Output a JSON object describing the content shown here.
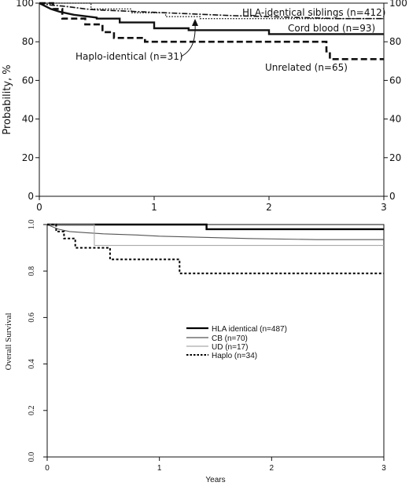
{
  "chart_data": [
    {
      "type": "line",
      "title": "",
      "xlabel": "",
      "ylabel": "Probability, %",
      "xlim": [
        0,
        3
      ],
      "ylim": [
        0,
        100
      ],
      "x_ticks": [
        "0",
        "1",
        "2",
        "3"
      ],
      "y_ticks": [
        "0",
        "20",
        "40",
        "60",
        "80",
        "100"
      ],
      "y_ticks_right": [
        "0",
        "20",
        "40",
        "60",
        "80",
        "100"
      ],
      "grid": false,
      "series": [
        {
          "name": "HLA-identical siblings (n=412)",
          "style": "dash-dot",
          "color": "#111111",
          "points": [
            [
              0,
              100
            ],
            [
              0.05,
              99.5
            ],
            [
              0.1,
              99
            ],
            [
              0.2,
              98.5
            ],
            [
              0.3,
              97.8
            ],
            [
              0.4,
              97
            ],
            [
              0.5,
              96.5
            ],
            [
              0.7,
              96
            ],
            [
              0.9,
              95.5
            ],
            [
              1.1,
              95
            ],
            [
              1.3,
              94.5
            ],
            [
              1.5,
              94
            ],
            [
              1.7,
              93.5
            ],
            [
              2.0,
              93
            ],
            [
              2.3,
              92.5
            ],
            [
              2.6,
              92
            ],
            [
              3.0,
              92
            ]
          ]
        },
        {
          "name": "Cord blood (n=93)",
          "style": "dotted",
          "color": "#111111",
          "points": [
            [
              0,
              100
            ],
            [
              0.45,
              100
            ],
            [
              0.45,
              97
            ],
            [
              0.8,
              97
            ],
            [
              0.8,
              95
            ],
            [
              1.1,
              95
            ],
            [
              1.1,
              93
            ],
            [
              1.4,
              93
            ],
            [
              1.4,
              92
            ],
            [
              3.0,
              92
            ]
          ]
        },
        {
          "name": "Haplo-identical (n=31)",
          "style": "solid-bold",
          "color": "#111111",
          "points": [
            [
              0,
              100
            ],
            [
              0.05,
              98.5
            ],
            [
              0.1,
              97
            ],
            [
              0.18,
              95.5
            ],
            [
              0.3,
              94
            ],
            [
              0.5,
              92.5
            ],
            [
              0.5,
              92
            ],
            [
              0.7,
              92
            ],
            [
              0.7,
              90
            ],
            [
              1.0,
              90
            ],
            [
              1.0,
              87
            ],
            [
              1.3,
              87
            ],
            [
              1.3,
              86
            ],
            [
              2.0,
              86
            ],
            [
              2.0,
              84
            ],
            [
              3.0,
              84
            ]
          ]
        },
        {
          "name": "Unrelated (n=65)",
          "style": "dashed-bold",
          "color": "#111111",
          "points": [
            [
              0,
              100
            ],
            [
              0.12,
              100
            ],
            [
              0.12,
              97
            ],
            [
              0.2,
              97
            ],
            [
              0.2,
              92
            ],
            [
              0.4,
              92
            ],
            [
              0.4,
              89
            ],
            [
              0.55,
              89
            ],
            [
              0.55,
              85
            ],
            [
              0.65,
              85
            ],
            [
              0.65,
              82
            ],
            [
              0.92,
              82
            ],
            [
              0.92,
              80
            ],
            [
              2.5,
              80
            ],
            [
              2.5,
              75
            ],
            [
              2.53,
              75
            ],
            [
              2.53,
              71
            ],
            [
              3.0,
              71
            ]
          ]
        }
      ],
      "annotations": [
        {
          "text": "HLA-identical siblings (n=412)"
        },
        {
          "text": "Cord blood (n=93)"
        },
        {
          "text": "Haplo-identical (n=31)"
        },
        {
          "text": "Unrelated (n=65)"
        }
      ]
    },
    {
      "type": "line",
      "title": "",
      "xlabel": "Years",
      "ylabel": "Overall Survival",
      "xlim": [
        0,
        3
      ],
      "ylim": [
        0,
        1
      ],
      "x_ticks": [
        "0",
        "1",
        "2",
        "3"
      ],
      "y_ticks": [
        "0.0",
        "0.2",
        "0.4",
        "0.6",
        "0.8",
        "1.0"
      ],
      "grid": false,
      "legend": "center",
      "series": [
        {
          "name": "HLA identical (n=487)",
          "style": "solid-bold",
          "color": "#000000",
          "points": [
            [
              0,
              1
            ],
            [
              0.42,
              1
            ],
            [
              0.42,
              1
            ],
            [
              1.42,
              1
            ],
            [
              1.42,
              0.98
            ],
            [
              3.0,
              0.98
            ]
          ]
        },
        {
          "name": "CB (n=70)",
          "style": "solid",
          "color": "#555555",
          "points": [
            [
              0,
              1
            ],
            [
              0.05,
              0.99
            ],
            [
              0.1,
              0.98
            ],
            [
              0.2,
              0.97
            ],
            [
              0.35,
              0.965
            ],
            [
              0.5,
              0.96
            ],
            [
              0.8,
              0.955
            ],
            [
              1.0,
              0.95
            ],
            [
              1.4,
              0.945
            ],
            [
              1.8,
              0.94
            ],
            [
              2.4,
              0.935
            ],
            [
              3.0,
              0.935
            ]
          ]
        },
        {
          "name": "UD (n=17)",
          "style": "solid-light",
          "color": "#aaaaaa",
          "points": [
            [
              0,
              1
            ],
            [
              0.42,
              1
            ],
            [
              0.42,
              0.91
            ],
            [
              3.0,
              0.91
            ]
          ]
        },
        {
          "name": "Haplo (n=34)",
          "style": "dotted-bold",
          "color": "#000000",
          "points": [
            [
              0,
              1
            ],
            [
              0.08,
              1
            ],
            [
              0.08,
              0.97
            ],
            [
              0.15,
              0.97
            ],
            [
              0.15,
              0.94
            ],
            [
              0.25,
              0.94
            ],
            [
              0.25,
              0.9
            ],
            [
              0.56,
              0.9
            ],
            [
              0.56,
              0.85
            ],
            [
              1.18,
              0.85
            ],
            [
              1.18,
              0.79
            ],
            [
              3.0,
              0.79
            ]
          ]
        }
      ]
    }
  ]
}
